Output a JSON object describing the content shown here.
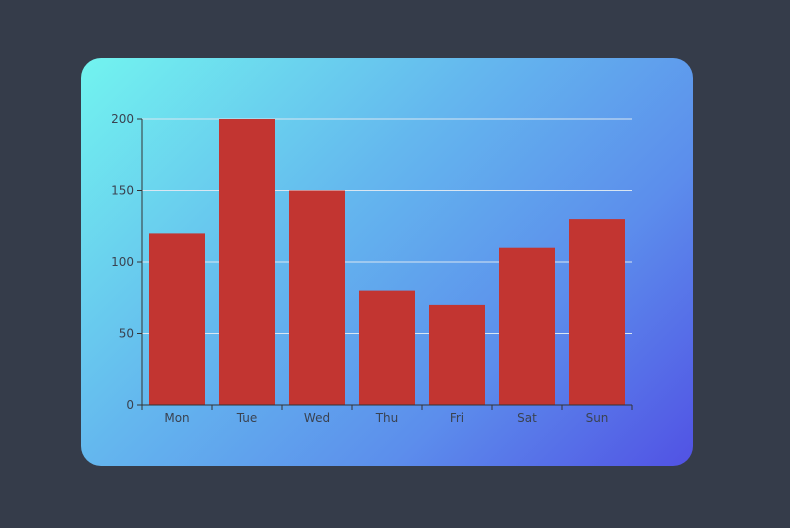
{
  "chart_data": {
    "type": "bar",
    "categories": [
      "Mon",
      "Tue",
      "Wed",
      "Thu",
      "Fri",
      "Sat",
      "Sun"
    ],
    "values": [
      120,
      200,
      150,
      80,
      70,
      110,
      130
    ],
    "title": "",
    "xlabel": "",
    "ylabel": "",
    "ylim": [
      0,
      200
    ],
    "yticks": [
      0,
      50,
      100,
      150,
      200
    ],
    "grid": true,
    "bar_color": "#c23531",
    "legend": "none"
  },
  "colors": {
    "page_background": "#353c4a",
    "gradient_start": "#72f4ef",
    "gradient_end": "#5152e4",
    "gridline": "#d9e6f2",
    "axis": "#333333"
  }
}
